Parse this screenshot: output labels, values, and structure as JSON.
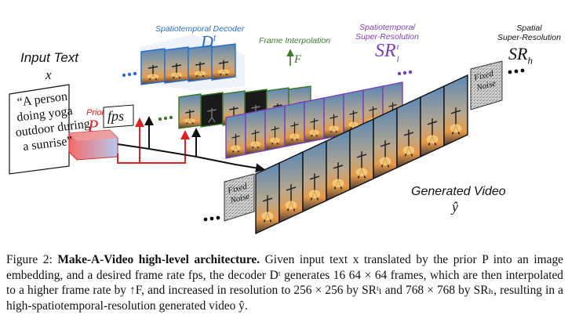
{
  "figure": {
    "input_text_label": "Input Text",
    "input_var": "x",
    "prompt_lines": [
      "“A person",
      "doing yoga",
      "outdoor during",
      "a sunrise”"
    ],
    "prior_label": "Prior",
    "prior_symbol": "P",
    "fps_label": "fps",
    "decoder_title": "Spatiotemporal Decoder",
    "decoder_symbol": "D",
    "decoder_sup": "t",
    "interp_title": "Frame Interpolation",
    "interp_symbol": "↑F",
    "sr_l_title_1": "Spatiotemporal",
    "sr_l_title_2": "Super-Resolution",
    "sr_l_symbol": "SR",
    "sr_l_sup": "t",
    "sr_l_sub": "l",
    "sr_h_title_1": "Spatial",
    "sr_h_title_2": "Super-Resolution",
    "sr_h_symbol": "SR",
    "sr_h_sub": "h",
    "fixed_noise": [
      "Fixed",
      "Noise"
    ],
    "generated_title": "Generated Video",
    "generated_symbol": "ŷ",
    "colors": {
      "decoder": "#2a6ecf",
      "interp": "#3c7a2a",
      "sr_l": "#7a3fb8",
      "prior": "#d22",
      "arrow": "#111"
    }
  },
  "caption": {
    "fig_num": "Figure 2:",
    "title": "Make-A-Video high-level architecture.",
    "text": "Given input text x translated by the prior P into an image embedding, and a desired frame rate fps, the decoder Dᵗ generates 16 64 × 64 frames, which are then interpolated to a higher frame rate by ↑F, and increased in resolution to 256 × 256 by SRᵗₗ and 768 × 768 by SRₕ, resulting in a high-spatiotemporal-resolution generated video ŷ."
  }
}
